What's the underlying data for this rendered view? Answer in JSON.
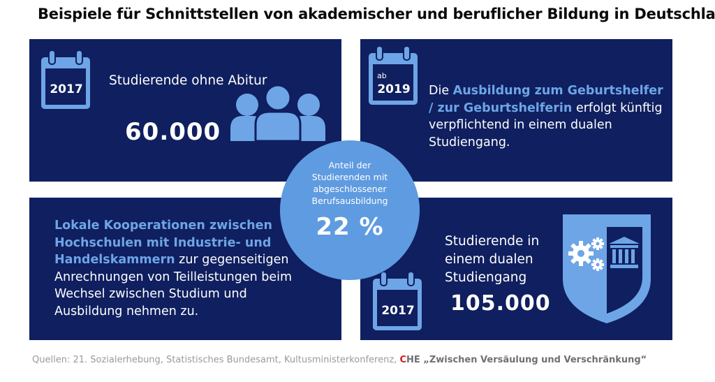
{
  "title": "Beispiele für Schnittstellen von akademischer und beruflicher Bildung in Deutschland",
  "panel_top_left": {
    "year": "2017",
    "label": "Studierende ohne Abitur",
    "value": "60.000",
    "icon": "people-group-icon"
  },
  "panel_top_right": {
    "year_prefix": "ab",
    "year": "2019",
    "text_before": "Die ",
    "highlight": "Ausbildung zum Geburtshelfer / zur Geburtshelferin",
    "text_after": " erfolgt künftig verpflichtend in einem dualen Studiengang."
  },
  "panel_bottom_left": {
    "highlight": "Lokale Kooperationen zwischen Hochschulen mit Industrie- und Handelskammern",
    "text_after": " zur gegenseitigen Anrechnungen von Teilleistungen beim Wechsel zwischen Studium und Ausbildung nehmen zu."
  },
  "panel_bottom_right": {
    "year": "2017",
    "label": "Studierende in einem dualen Studiengang",
    "value": "105.000",
    "icon": "shield-gears-university-icon"
  },
  "center_circle": {
    "label": "Anteil der Studierenden mit abgeschlossener Berufsausbildung",
    "value": "22 %"
  },
  "source": {
    "prefix": "Quellen: 21. Sozialerhebung, Statistisches Bundesamt, Kultusministerkonferenz, ",
    "che_c": "C",
    "che_rest": "HE",
    "quote": " „Zwischen Versäulung und Verschränkung“"
  },
  "colors": {
    "panel": "#0f1f5f",
    "accent": "#6ea5e6",
    "circle": "#5f9be0",
    "che_red": "#d0201d"
  }
}
